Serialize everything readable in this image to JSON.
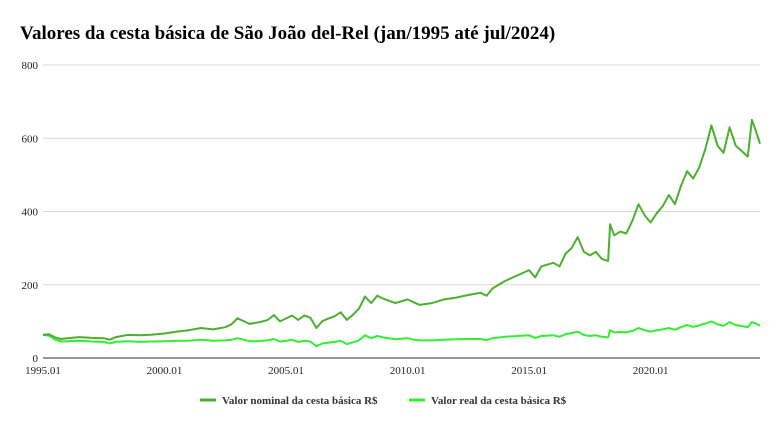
{
  "chart_data": {
    "type": "line",
    "title": "Valores da cesta básica de São João del-Rel (jan/1995 até jul/2024)",
    "xlabel": "",
    "ylabel": "",
    "xlim": [
      "1995-01",
      "2024-07"
    ],
    "ylim": [
      0,
      800
    ],
    "y_ticks": [
      0,
      200,
      400,
      600,
      800
    ],
    "x_ticks": [
      "1995.01",
      "2000.01",
      "2005.01",
      "2010.01",
      "2015.01",
      "2020.01"
    ],
    "grid": true,
    "legend_position": "bottom",
    "series": [
      {
        "name": "Valor nominal da cesta básica R$",
        "color": "#4caf2f",
        "points": [
          [
            "1995-01",
            63
          ],
          [
            "1995-04",
            65
          ],
          [
            "1995-07",
            56
          ],
          [
            "1995-10",
            52
          ],
          [
            "1996-01",
            54
          ],
          [
            "1996-07",
            57
          ],
          [
            "1997-01",
            55
          ],
          [
            "1997-07",
            54
          ],
          [
            "1997-10",
            50
          ],
          [
            "1998-01",
            57
          ],
          [
            "1998-07",
            63
          ],
          [
            "1999-01",
            62
          ],
          [
            "1999-07",
            64
          ],
          [
            "2000-01",
            67
          ],
          [
            "2000-07",
            72
          ],
          [
            "2001-01",
            76
          ],
          [
            "2001-07",
            82
          ],
          [
            "2002-01",
            78
          ],
          [
            "2002-07",
            84
          ],
          [
            "2002-10",
            92
          ],
          [
            "2003-01",
            108
          ],
          [
            "2003-04",
            101
          ],
          [
            "2003-07",
            93
          ],
          [
            "2003-10",
            96
          ],
          [
            "2004-01",
            99
          ],
          [
            "2004-04",
            104
          ],
          [
            "2004-07",
            117
          ],
          [
            "2004-10",
            100
          ],
          [
            "2005-01",
            108
          ],
          [
            "2005-04",
            116
          ],
          [
            "2005-07",
            104
          ],
          [
            "2005-10",
            116
          ],
          [
            "2006-01",
            110
          ],
          [
            "2006-04",
            82
          ],
          [
            "2006-07",
            101
          ],
          [
            "2006-10",
            108
          ],
          [
            "2007-01",
            114
          ],
          [
            "2007-04",
            125
          ],
          [
            "2007-07",
            104
          ],
          [
            "2007-10",
            118
          ],
          [
            "2008-01",
            135
          ],
          [
            "2008-04",
            168
          ],
          [
            "2008-07",
            150
          ],
          [
            "2008-10",
            170
          ],
          [
            "2009-01",
            162
          ],
          [
            "2009-07",
            150
          ],
          [
            "2010-01",
            160
          ],
          [
            "2010-04",
            152
          ],
          [
            "2010-07",
            145
          ],
          [
            "2011-01",
            150
          ],
          [
            "2011-07",
            160
          ],
          [
            "2012-01",
            165
          ],
          [
            "2012-07",
            172
          ],
          [
            "2013-01",
            178
          ],
          [
            "2013-04",
            170
          ],
          [
            "2013-07",
            190
          ],
          [
            "2014-01",
            210
          ],
          [
            "2014-07",
            225
          ],
          [
            "2015-01",
            240
          ],
          [
            "2015-04",
            220
          ],
          [
            "2015-07",
            250
          ],
          [
            "2016-01",
            260
          ],
          [
            "2016-04",
            250
          ],
          [
            "2016-07",
            285
          ],
          [
            "2016-10",
            300
          ],
          [
            "2017-01",
            330
          ],
          [
            "2017-04",
            290
          ],
          [
            "2017-07",
            280
          ],
          [
            "2017-10",
            290
          ],
          [
            "2018-01",
            270
          ],
          [
            "2018-04",
            265
          ],
          [
            "2018-05",
            365
          ],
          [
            "2018-07",
            335
          ],
          [
            "2018-10",
            345
          ],
          [
            "2019-01",
            340
          ],
          [
            "2019-04",
            375
          ],
          [
            "2019-07",
            420
          ],
          [
            "2019-10",
            390
          ],
          [
            "2020-01",
            370
          ],
          [
            "2020-04",
            395
          ],
          [
            "2020-07",
            415
          ],
          [
            "2020-10",
            445
          ],
          [
            "2021-01",
            420
          ],
          [
            "2021-04",
            470
          ],
          [
            "2021-07",
            510
          ],
          [
            "2021-10",
            490
          ],
          [
            "2022-01",
            520
          ],
          [
            "2022-04",
            570
          ],
          [
            "2022-07",
            635
          ],
          [
            "2022-10",
            580
          ],
          [
            "2023-01",
            560
          ],
          [
            "2023-04",
            630
          ],
          [
            "2023-07",
            580
          ],
          [
            "2023-10",
            565
          ],
          [
            "2024-01",
            550
          ],
          [
            "2024-03",
            650
          ],
          [
            "2024-05",
            620
          ],
          [
            "2024-07",
            585
          ]
        ]
      },
      {
        "name": "Valor real da cesta básica R$",
        "color": "#33ee33",
        "points": [
          [
            "1995-01",
            63
          ],
          [
            "1995-04",
            61
          ],
          [
            "1995-07",
            50
          ],
          [
            "1995-10",
            45
          ],
          [
            "1996-01",
            46
          ],
          [
            "1996-07",
            47
          ],
          [
            "1997-01",
            45
          ],
          [
            "1997-07",
            44
          ],
          [
            "1997-10",
            40
          ],
          [
            "1998-01",
            44
          ],
          [
            "1998-07",
            46
          ],
          [
            "1999-01",
            44
          ],
          [
            "1999-07",
            45
          ],
          [
            "2000-01",
            46
          ],
          [
            "2000-07",
            47
          ],
          [
            "2001-01",
            47
          ],
          [
            "2001-07",
            50
          ],
          [
            "2002-01",
            47
          ],
          [
            "2002-07",
            48
          ],
          [
            "2002-10",
            50
          ],
          [
            "2003-01",
            54
          ],
          [
            "2003-04",
            50
          ],
          [
            "2003-07",
            46
          ],
          [
            "2003-10",
            46
          ],
          [
            "2004-01",
            47
          ],
          [
            "2004-04",
            48
          ],
          [
            "2004-07",
            52
          ],
          [
            "2004-10",
            45
          ],
          [
            "2005-01",
            47
          ],
          [
            "2005-04",
            50
          ],
          [
            "2005-07",
            44
          ],
          [
            "2005-10",
            47
          ],
          [
            "2006-01",
            45
          ],
          [
            "2006-04",
            32
          ],
          [
            "2006-07",
            40
          ],
          [
            "2006-10",
            42
          ],
          [
            "2007-01",
            44
          ],
          [
            "2007-04",
            47
          ],
          [
            "2007-07",
            38
          ],
          [
            "2007-10",
            43
          ],
          [
            "2008-01",
            48
          ],
          [
            "2008-04",
            62
          ],
          [
            "2008-07",
            54
          ],
          [
            "2008-10",
            60
          ],
          [
            "2009-01",
            56
          ],
          [
            "2009-07",
            51
          ],
          [
            "2010-01",
            54
          ],
          [
            "2010-04",
            50
          ],
          [
            "2010-07",
            48
          ],
          [
            "2011-01",
            48
          ],
          [
            "2011-07",
            50
          ],
          [
            "2012-01",
            51
          ],
          [
            "2012-07",
            52
          ],
          [
            "2013-01",
            52
          ],
          [
            "2013-04",
            49
          ],
          [
            "2013-07",
            54
          ],
          [
            "2014-01",
            58
          ],
          [
            "2014-07",
            60
          ],
          [
            "2015-01",
            62
          ],
          [
            "2015-04",
            55
          ],
          [
            "2015-07",
            60
          ],
          [
            "2016-01",
            62
          ],
          [
            "2016-04",
            58
          ],
          [
            "2016-07",
            65
          ],
          [
            "2016-10",
            68
          ],
          [
            "2017-01",
            72
          ],
          [
            "2017-04",
            63
          ],
          [
            "2017-07",
            60
          ],
          [
            "2017-10",
            62
          ],
          [
            "2018-01",
            58
          ],
          [
            "2018-04",
            56
          ],
          [
            "2018-05",
            76
          ],
          [
            "2018-07",
            70
          ],
          [
            "2018-10",
            71
          ],
          [
            "2019-01",
            70
          ],
          [
            "2019-04",
            74
          ],
          [
            "2019-07",
            82
          ],
          [
            "2019-10",
            76
          ],
          [
            "2020-01",
            72
          ],
          [
            "2020-04",
            76
          ],
          [
            "2020-07",
            78
          ],
          [
            "2020-10",
            82
          ],
          [
            "2021-01",
            77
          ],
          [
            "2021-04",
            84
          ],
          [
            "2021-07",
            90
          ],
          [
            "2021-10",
            85
          ],
          [
            "2022-01",
            89
          ],
          [
            "2022-04",
            94
          ],
          [
            "2022-07",
            100
          ],
          [
            "2022-10",
            92
          ],
          [
            "2023-01",
            88
          ],
          [
            "2023-04",
            98
          ],
          [
            "2023-07",
            90
          ],
          [
            "2023-10",
            87
          ],
          [
            "2024-01",
            84
          ],
          [
            "2024-03",
            98
          ],
          [
            "2024-05",
            94
          ],
          [
            "2024-07",
            88
          ]
        ]
      }
    ]
  }
}
